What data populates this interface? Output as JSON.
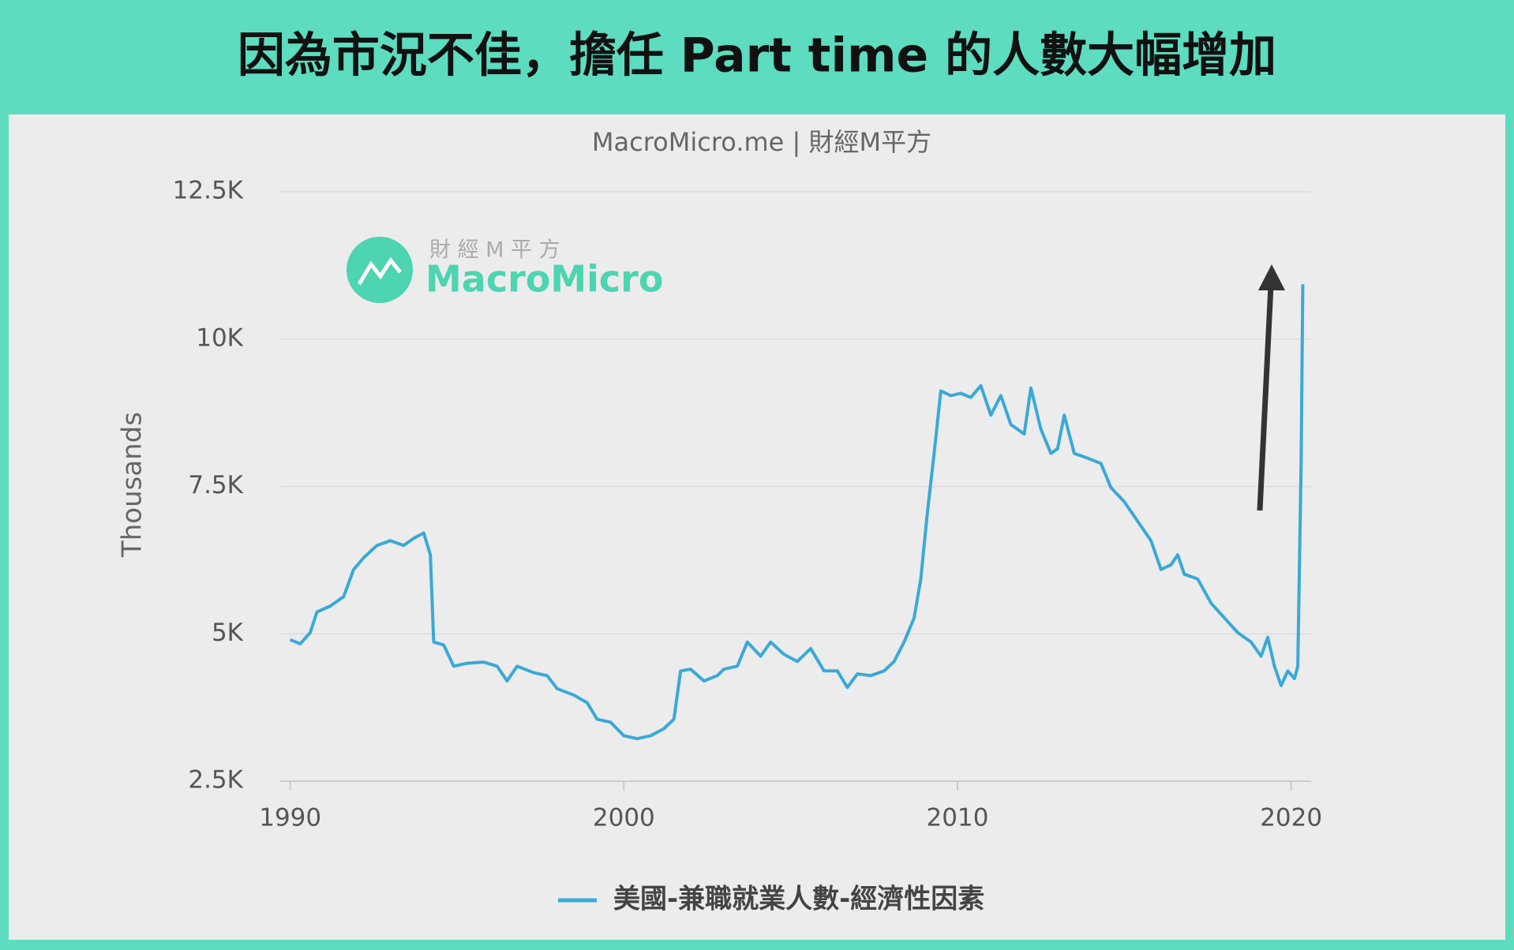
{
  "chart_data": {
    "type": "line",
    "title": "因為市況不佳，擔任 Part time 的人數大幅增加",
    "subtitle": "MacroMicro.me | 財經M平方",
    "y_label": "Thousands",
    "watermark": {
      "top": "財 經 M 平 方",
      "name": "MacroMicro"
    },
    "x": [
      1990.0,
      1990.3,
      1990.6,
      1990.8,
      1991.2,
      1991.6,
      1991.9,
      1992.2,
      1992.6,
      1993.0,
      1993.4,
      1993.7,
      1994.0,
      1994.2,
      1994.3,
      1994.6,
      1994.9,
      1995.3,
      1995.8,
      1996.2,
      1996.5,
      1996.8,
      1997.3,
      1997.7,
      1998.0,
      1998.5,
      1998.9,
      1999.2,
      1999.6,
      2000.0,
      2000.4,
      2000.8,
      2001.2,
      2001.5,
      2001.7,
      2002.0,
      2002.4,
      2002.8,
      2003.0,
      2003.4,
      2003.7,
      2004.1,
      2004.4,
      2004.8,
      2005.2,
      2005.6,
      2006.0,
      2006.4,
      2006.7,
      2007.0,
      2007.4,
      2007.8,
      2008.1,
      2008.4,
      2008.7,
      2008.9,
      2009.1,
      2009.3,
      2009.5,
      2009.8,
      2010.1,
      2010.4,
      2010.7,
      2011.0,
      2011.3,
      2011.6,
      2012.0,
      2012.2,
      2012.5,
      2012.8,
      2013.0,
      2013.2,
      2013.5,
      2013.9,
      2014.3,
      2014.6,
      2015.0,
      2015.4,
      2015.8,
      2016.1,
      2016.4,
      2016.6,
      2016.8,
      2017.2,
      2017.6,
      2018.0,
      2018.4,
      2018.8,
      2019.1,
      2019.3,
      2019.5,
      2019.7,
      2019.9,
      2020.1,
      2020.2,
      2020.3,
      2020.35
    ],
    "series": [
      {
        "name": "美國-兼職就業人數-經濟性因素",
        "color": "#3aa9d6",
        "values": [
          4900,
          4830,
          5020,
          5370,
          5470,
          5630,
          6090,
          6290,
          6500,
          6580,
          6500,
          6620,
          6710,
          6340,
          4860,
          4810,
          4450,
          4500,
          4520,
          4450,
          4200,
          4450,
          4340,
          4290,
          4070,
          3960,
          3830,
          3550,
          3500,
          3270,
          3220,
          3270,
          3390,
          3550,
          4370,
          4400,
          4200,
          4290,
          4400,
          4450,
          4860,
          4620,
          4860,
          4650,
          4530,
          4750,
          4370,
          4370,
          4090,
          4320,
          4290,
          4370,
          4530,
          4860,
          5270,
          5930,
          7070,
          8060,
          9120,
          9040,
          9080,
          9010,
          9210,
          8710,
          9040,
          8550,
          8390,
          9170,
          8470,
          8060,
          8140,
          8710,
          8060,
          7980,
          7890,
          7480,
          7240,
          6910,
          6580,
          6090,
          6170,
          6340,
          6010,
          5930,
          5520,
          5270,
          5020,
          4860,
          4620,
          4940,
          4450,
          4120,
          4370,
          4240,
          4450,
          7890,
          10930
        ]
      }
    ],
    "xlim": [
      1989.7,
      2020.6
    ],
    "xticks": [
      1990,
      2000,
      2010,
      2020
    ],
    "ylim": [
      2500,
      12500
    ],
    "yticks": [
      {
        "value": 2500,
        "label": "2.5K"
      },
      {
        "value": 5000,
        "label": "5K"
      },
      {
        "value": 7500,
        "label": "7.5K"
      },
      {
        "value": 10000,
        "label": "10K"
      },
      {
        "value": 12500,
        "label": "12.5K"
      }
    ],
    "grid": true
  }
}
